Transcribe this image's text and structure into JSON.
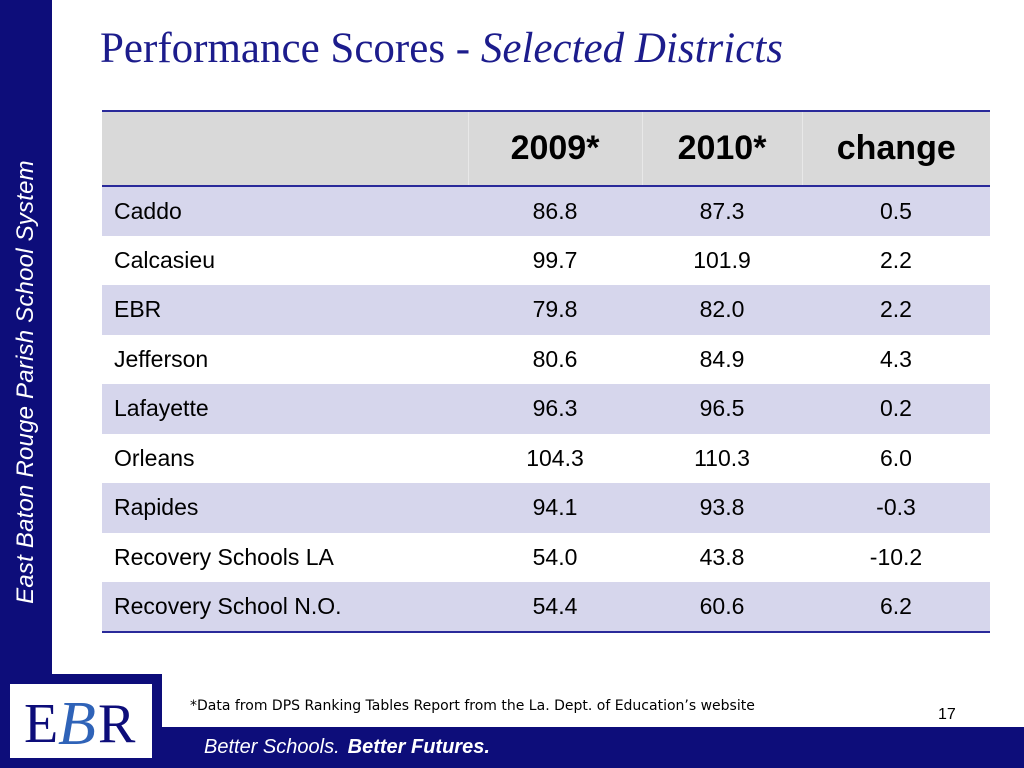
{
  "sidebar": {
    "text": "East Baton Rouge Parish School System"
  },
  "title": {
    "main": "Performance Scores - ",
    "italic": "Selected Districts"
  },
  "table": {
    "headers": [
      "",
      "2009*",
      "2010*",
      "change"
    ],
    "rows": [
      [
        "Caddo",
        "86.8",
        "87.3",
        "0.5"
      ],
      [
        "Calcasieu",
        "99.7",
        "101.9",
        "2.2"
      ],
      [
        "EBR",
        "79.8",
        "82.0",
        "2.2"
      ],
      [
        "Jefferson",
        "80.6",
        "84.9",
        "4.3"
      ],
      [
        "Lafayette",
        "96.3",
        "96.5",
        "0.2"
      ],
      [
        "Orleans",
        "104.3",
        "110.3",
        "6.0"
      ],
      [
        "Rapides",
        "94.1",
        "93.8",
        "-0.3"
      ],
      [
        "Recovery Schools LA",
        "54.0",
        "43.8",
        "-10.2"
      ],
      [
        "Recovery School  N.O.",
        "54.4",
        "60.6",
        "6.2"
      ]
    ]
  },
  "footnote": "*Data from DPS Ranking Tables Report from the La. Dept. of Education’s website",
  "page_number": "17",
  "footer": {
    "tagline_1": "Better Schools.",
    "tagline_2": "Better Futures."
  },
  "logo": {
    "text_e": "E",
    "text_b": "B",
    "text_r": "R"
  },
  "colors": {
    "brand_navy": "#0d0d7a",
    "title_blue": "#1c1c8c",
    "row_tint": "#d6d6ec",
    "header_gray": "#d9d9d9"
  }
}
